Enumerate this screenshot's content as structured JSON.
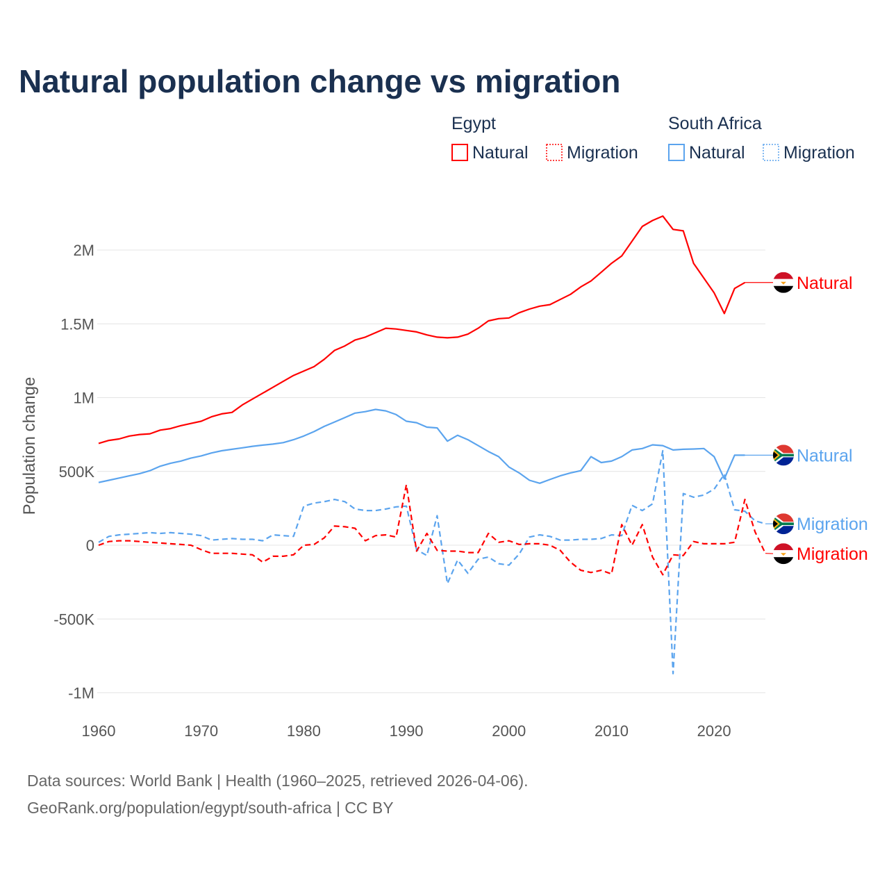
{
  "chart_data": {
    "type": "line",
    "title": "Natural population change vs migration",
    "ylabel": "Population change",
    "xlabel": "",
    "xlim": [
      1960,
      2025
    ],
    "ylim": [
      -1000000,
      2300000
    ],
    "x_ticks": [
      1960,
      1970,
      1980,
      1990,
      2000,
      2010,
      2020
    ],
    "y_ticks": [
      {
        "v": 2000000,
        "label": "2M"
      },
      {
        "v": 1500000,
        "label": "1.5M"
      },
      {
        "v": 1000000,
        "label": "1M"
      },
      {
        "v": 500000,
        "label": "500K"
      },
      {
        "v": 0,
        "label": "0"
      },
      {
        "v": -500000,
        "label": "-500K"
      },
      {
        "v": -1000000,
        "label": "-1M"
      }
    ],
    "grid": true,
    "legend_placement": "top-right",
    "legend_groups": [
      {
        "country": "Egypt",
        "items": [
          "Natural",
          "Migration"
        ],
        "color": "#ff0000"
      },
      {
        "country": "South Africa",
        "items": [
          "Natural",
          "Migration"
        ],
        "color": "#5ba4ee"
      }
    ],
    "series": [
      {
        "name": "Egypt Natural",
        "label": "Natural",
        "country": "Egypt",
        "color": "#ff0000",
        "dash": false,
        "start_year": 1960,
        "values": [
          690000,
          710000,
          720000,
          740000,
          750000,
          755000,
          780000,
          790000,
          810000,
          825000,
          840000,
          870000,
          890000,
          900000,
          950000,
          990000,
          1030000,
          1070000,
          1110000,
          1150000,
          1180000,
          1210000,
          1260000,
          1320000,
          1350000,
          1390000,
          1410000,
          1440000,
          1470000,
          1465000,
          1455000,
          1445000,
          1425000,
          1410000,
          1405000,
          1410000,
          1430000,
          1470000,
          1520000,
          1535000,
          1540000,
          1575000,
          1600000,
          1620000,
          1630000,
          1665000,
          1700000,
          1750000,
          1790000,
          1850000,
          1910000,
          1960000,
          2060000,
          2160000,
          2200000,
          2230000,
          2140000,
          2130000,
          1910000,
          1810000,
          1710000,
          1570000,
          1740000,
          1780000
        ]
      },
      {
        "name": "South Africa Natural",
        "label": "Natural",
        "country": "South Africa",
        "color": "#5ba4ee",
        "dash": false,
        "start_year": 1960,
        "values": [
          425000,
          440000,
          455000,
          470000,
          485000,
          505000,
          535000,
          555000,
          570000,
          590000,
          605000,
          625000,
          640000,
          650000,
          660000,
          670000,
          678000,
          685000,
          695000,
          715000,
          740000,
          770000,
          805000,
          835000,
          865000,
          895000,
          905000,
          920000,
          910000,
          885000,
          840000,
          830000,
          800000,
          795000,
          705000,
          745000,
          715000,
          675000,
          635000,
          600000,
          530000,
          490000,
          440000,
          420000,
          445000,
          470000,
          490000,
          505000,
          600000,
          560000,
          570000,
          600000,
          645000,
          655000,
          680000,
          675000,
          645000,
          650000,
          652000,
          655000,
          600000,
          450000,
          610000,
          610000
        ]
      },
      {
        "name": "South Africa Migration",
        "label": "Migration",
        "country": "South Africa",
        "color": "#5ba4ee",
        "dash": true,
        "start_year": 1960,
        "values": [
          20000,
          60000,
          70000,
          75000,
          80000,
          85000,
          80000,
          85000,
          80000,
          75000,
          65000,
          35000,
          40000,
          45000,
          40000,
          40000,
          30000,
          70000,
          65000,
          60000,
          265000,
          285000,
          295000,
          310000,
          295000,
          245000,
          235000,
          235000,
          245000,
          260000,
          265000,
          -30000,
          -70000,
          200000,
          -260000,
          -100000,
          -190000,
          -95000,
          -80000,
          -125000,
          -135000,
          -60000,
          55000,
          70000,
          60000,
          35000,
          35000,
          40000,
          40000,
          45000,
          70000,
          65000,
          270000,
          235000,
          280000,
          640000,
          -870000,
          350000,
          325000,
          340000,
          380000,
          480000,
          240000,
          230000,
          165000,
          145000
        ]
      },
      {
        "name": "Egypt Migration",
        "label": "Migration",
        "country": "Egypt",
        "color": "#ff0000",
        "dash": true,
        "start_year": 1960,
        "values": [
          0,
          25000,
          30000,
          30000,
          25000,
          20000,
          15000,
          10000,
          5000,
          0,
          -30000,
          -55000,
          -55000,
          -55000,
          -60000,
          -65000,
          -115000,
          -75000,
          -75000,
          -65000,
          0,
          5000,
          50000,
          130000,
          125000,
          115000,
          30000,
          65000,
          70000,
          55000,
          410000,
          -40000,
          80000,
          -35000,
          -40000,
          -40000,
          -50000,
          -50000,
          80000,
          20000,
          30000,
          5000,
          10000,
          10000,
          0,
          -35000,
          -115000,
          -170000,
          -185000,
          -170000,
          -195000,
          140000,
          0,
          140000,
          -80000,
          -200000,
          -65000,
          -70000,
          25000,
          10000,
          10000,
          10000,
          20000,
          310000,
          90000,
          -55000
        ]
      }
    ]
  },
  "footer": {
    "source": "Data sources: World Bank | Health (1960–2025, retrieved 2026-04-06).",
    "url": "GeoRank.org/population/egypt/south-africa | CC BY"
  }
}
